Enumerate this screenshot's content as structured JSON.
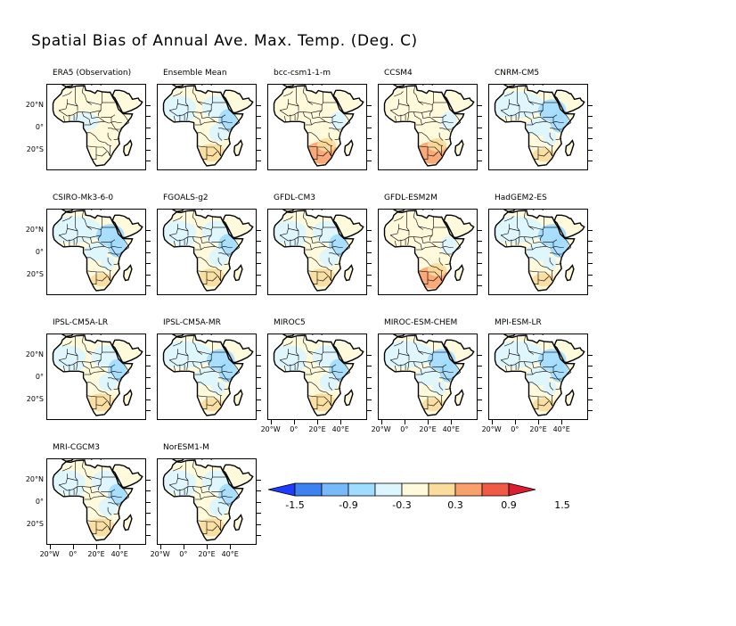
{
  "title": "Spatial Bias of Annual Ave. Max. Temp. (Deg. C)",
  "panels": [
    {
      "name": "ERA5 (Observation)",
      "pattern": "obs"
    },
    {
      "name": "Ensemble Mean",
      "pattern": "mixed"
    },
    {
      "name": "bcc-csm1-1-m",
      "pattern": "warm"
    },
    {
      "name": "CCSM4",
      "pattern": "warm"
    },
    {
      "name": "CNRM-CM5",
      "pattern": "cool"
    },
    {
      "name": "CSIRO-Mk3-6-0",
      "pattern": "cool"
    },
    {
      "name": "FGOALS-g2",
      "pattern": "mixed"
    },
    {
      "name": "GFDL-CM3",
      "pattern": "mixed"
    },
    {
      "name": "GFDL-ESM2M",
      "pattern": "warm"
    },
    {
      "name": "HadGEM2-ES",
      "pattern": "cool"
    },
    {
      "name": "IPSL-CM5A-LR",
      "pattern": "mixed"
    },
    {
      "name": "IPSL-CM5A-MR",
      "pattern": "cool"
    },
    {
      "name": "MIROC5",
      "pattern": "mixed"
    },
    {
      "name": "MIROC-ESM-CHEM",
      "pattern": "cool"
    },
    {
      "name": "MPI-ESM-LR",
      "pattern": "cool"
    },
    {
      "name": "MRI-CGCM3",
      "pattern": "mixed"
    },
    {
      "name": "NorESM1-M",
      "pattern": "mixed"
    }
  ],
  "y_tick_labels": [
    "20°N",
    "0°",
    "20°S"
  ],
  "x_tick_labels": [
    "20°W",
    "0°",
    "20°E",
    "40°E"
  ],
  "colorbar": {
    "labels": [
      "-1.5",
      "-0.9",
      "-0.3",
      "0.3",
      "0.9",
      "1.5"
    ],
    "colors": [
      "#1e3cff",
      "#3c82f0",
      "#78b9fa",
      "#a0dcff",
      "#dcf5ff",
      "#fffadc",
      "#fadc9c",
      "#faa06e",
      "#f05a46",
      "#dc1e32"
    ]
  }
}
